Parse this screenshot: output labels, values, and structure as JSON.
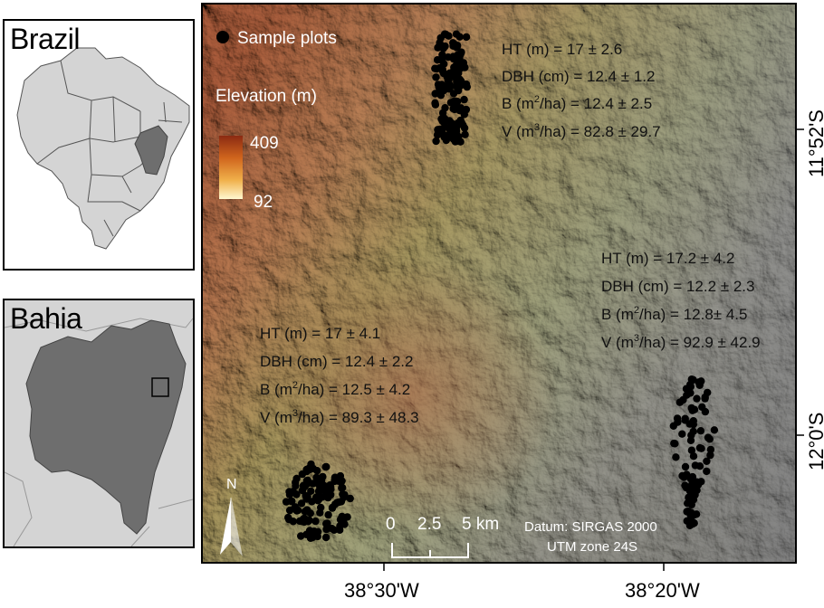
{
  "insets": {
    "brazil": {
      "title": "Brazil"
    },
    "bahia": {
      "title": "Bahia"
    }
  },
  "legend": {
    "sample_plots": "Sample plots",
    "elevation_title": "Elevation (m)",
    "elevation_max": "409",
    "elevation_min": "92",
    "ramp_colors": [
      "#8b2a12",
      "#d0651d",
      "#f0b04a",
      "#fff8d0"
    ]
  },
  "stats": {
    "north": {
      "ht": "HT (m) = 17 ± 2.6",
      "dbh": "DBH (cm) = 12.4 ± 1.2",
      "b_prefix": "B (m",
      "b_suffix": "/ha) = 12.4 ± 2.5",
      "v_prefix": "V (m",
      "v_suffix": "/ha) = 82.8 ± 29.7"
    },
    "east": {
      "ht": "HT (m) = 17.2 ± 4.2",
      "dbh": "DBH (cm) = 12.2 ± 2.3",
      "b_prefix": "B (m",
      "b_suffix": "/ha) = 12.8± 4.5",
      "v_prefix": "V (m",
      "v_suffix": "/ha) = 92.9 ± 42.9"
    },
    "west": {
      "ht": "HT (m) = 17 ± 4.1",
      "dbh": "DBH (cm) = 12.4 ± 2.2",
      "b_prefix": "B (m",
      "b_suffix": "/ha) = 12.5 ± 4.2",
      "v_prefix": "V (m",
      "v_suffix": "/ha) = 89.3 ± 48.3"
    },
    "sup2": "2",
    "sup3": "3"
  },
  "scalebar": {
    "labels": [
      "0",
      "2.5",
      "5 km"
    ]
  },
  "north_arrow": {
    "label": "N"
  },
  "datum": {
    "line1": "Datum: SIRGAS 2000",
    "line2": "UTM zone 24S"
  },
  "axes": {
    "lon_left": "38°30'W",
    "lon_right": "38°20'W",
    "lat_top": "11°52'S",
    "lat_bottom": "12°0'S"
  },
  "colors": {
    "bahia_fill": "#6e6e6e",
    "neighbor_fill": "#d4d4d4",
    "plot_dot": "#000000"
  }
}
